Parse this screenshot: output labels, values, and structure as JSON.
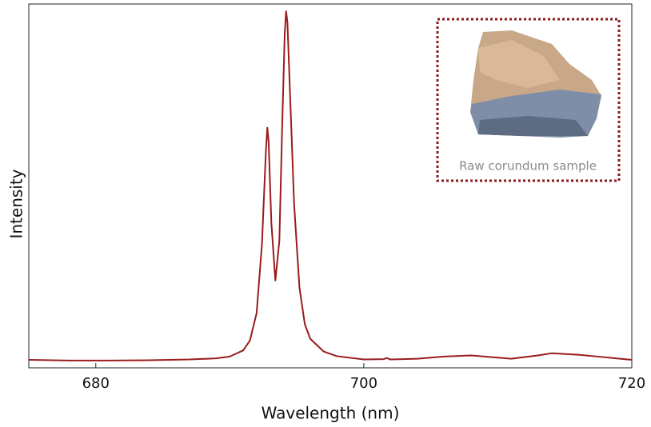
{
  "chart_data": {
    "type": "line",
    "x_label": "Wavelength (nm)",
    "y_label": "Intensity",
    "inset_caption": "Raw corundum sample",
    "xlim": [
      675,
      720
    ],
    "xticks": [
      680,
      700,
      720
    ],
    "ylim": [
      0,
      100
    ],
    "series": [
      {
        "color": "#9b1b1b",
        "x": [
          675,
          678,
          681,
          684,
          687,
          689,
          690,
          691,
          691.5,
          692,
          692.4,
          692.7,
          692.8,
          692.9,
          693.1,
          693.4,
          693.7,
          693.9,
          694.1,
          694.2,
          694.3,
          694.5,
          694.8,
          695.2,
          695.6,
          696,
          697,
          698,
          700,
          701.5,
          701.7,
          702,
          704,
          705,
          706,
          708,
          710,
          711,
          713,
          714,
          716,
          718,
          720
        ],
        "values": [
          2.2,
          2.0,
          2.0,
          2.1,
          2.3,
          2.6,
          3.1,
          4.8,
          7.5,
          15,
          34,
          60,
          66,
          62,
          40,
          24,
          35,
          65,
          92,
          98,
          95,
          75,
          45,
          22,
          12,
          8,
          4.5,
          3.2,
          2.3,
          2.4,
          2.7,
          2.3,
          2.5,
          2.8,
          3.1,
          3.4,
          2.8,
          2.5,
          3.4,
          4.0,
          3.6,
          2.9,
          2.2
        ]
      }
    ]
  }
}
